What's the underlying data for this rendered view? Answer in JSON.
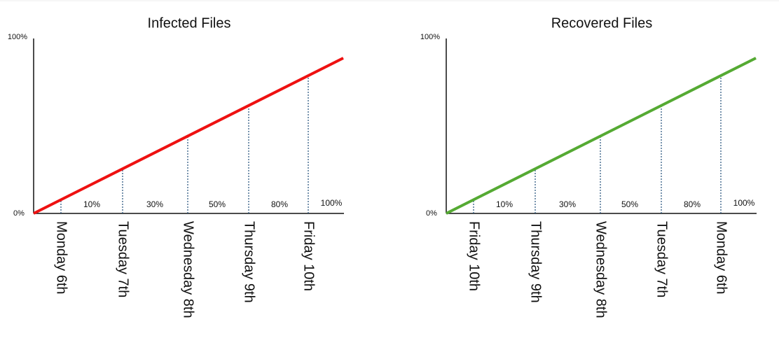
{
  "charts": [
    {
      "title": "Infected Files",
      "y_top": "100%",
      "y_bottom": "0%",
      "color": "#ee1111",
      "days": [
        "Monday 6th",
        "Tuesday 7th",
        "Wednesday 8th",
        "Thursday 9th",
        "Friday 10th"
      ],
      "segments": [
        "10%",
        "30%",
        "50%",
        "80%",
        "100%"
      ]
    },
    {
      "title": "Recovered Files",
      "y_top": "100%",
      "y_bottom": "0%",
      "color": "#55aa33",
      "days": [
        "Friday 10th",
        "Thursday 9th",
        "Wednesday 8th",
        "Tuesday 7th",
        "Monday 6th"
      ],
      "segments": [
        "10%",
        "30%",
        "50%",
        "80%",
        "100%"
      ]
    }
  ]
}
